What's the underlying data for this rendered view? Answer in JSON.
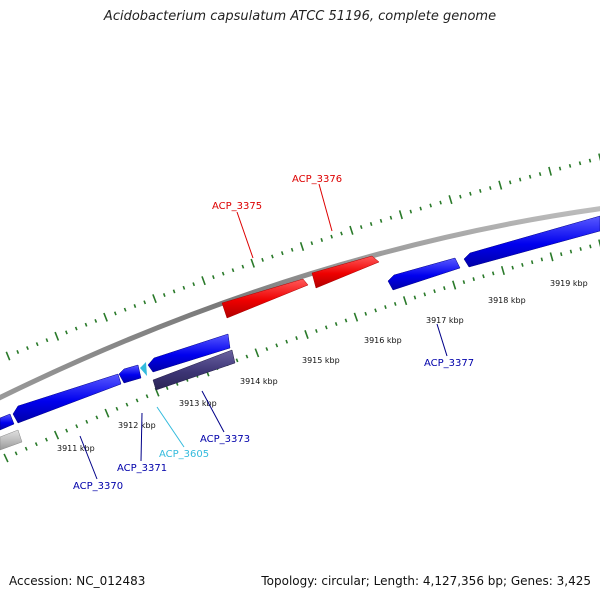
{
  "title": "Acidobacterium capsulatum ATCC 51196, complete genome",
  "accession": "Accession: NC_012483",
  "summary": "Topology: circular; Length: 4,127,356 bp; Genes: 3,425",
  "colors": {
    "backbone": "#888888",
    "tick": "#2a7a2a",
    "red": "#ff0000",
    "blue": "#0000ee",
    "dark": "#3d3575",
    "cyan": "#33bbdd",
    "gray": "#bbbbbb"
  },
  "scale_labels": [
    "3911 kbp",
    "3912 kbp",
    "3913 kbp",
    "3914 kbp",
    "3915 kbp",
    "3916 kbp",
    "3917 kbp",
    "3918 kbp",
    "3919 kbp"
  ],
  "gene_labels": {
    "acp3370": "ACP_3370",
    "acp3371": "ACP_3371",
    "acp3605": "ACP_3605",
    "acp3373": "ACP_3373",
    "acp3375": "ACP_3375",
    "acp3376": "ACP_3376",
    "acp3377": "ACP_3377"
  }
}
